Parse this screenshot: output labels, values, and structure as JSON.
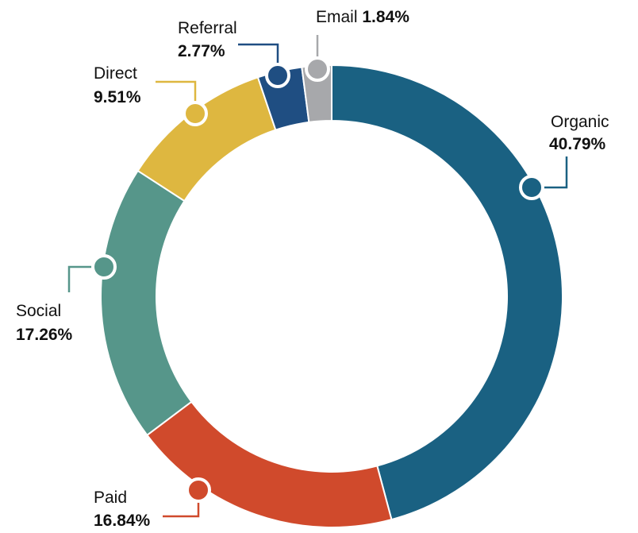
{
  "chart_data": {
    "type": "donut",
    "categories": [
      "Organic",
      "Paid",
      "Social",
      "Direct",
      "Referral",
      "Email"
    ],
    "values": [
      40.79,
      16.84,
      17.26,
      9.51,
      2.77,
      1.84
    ],
    "value_labels": [
      "40.79%",
      "16.84%",
      "17.26%",
      "9.51%",
      "2.77%",
      "1.84%"
    ],
    "colors": [
      "#1a6182",
      "#d04a2c",
      "#56968a",
      "#deb740",
      "#1f4e82",
      "#a7a8ab"
    ]
  }
}
